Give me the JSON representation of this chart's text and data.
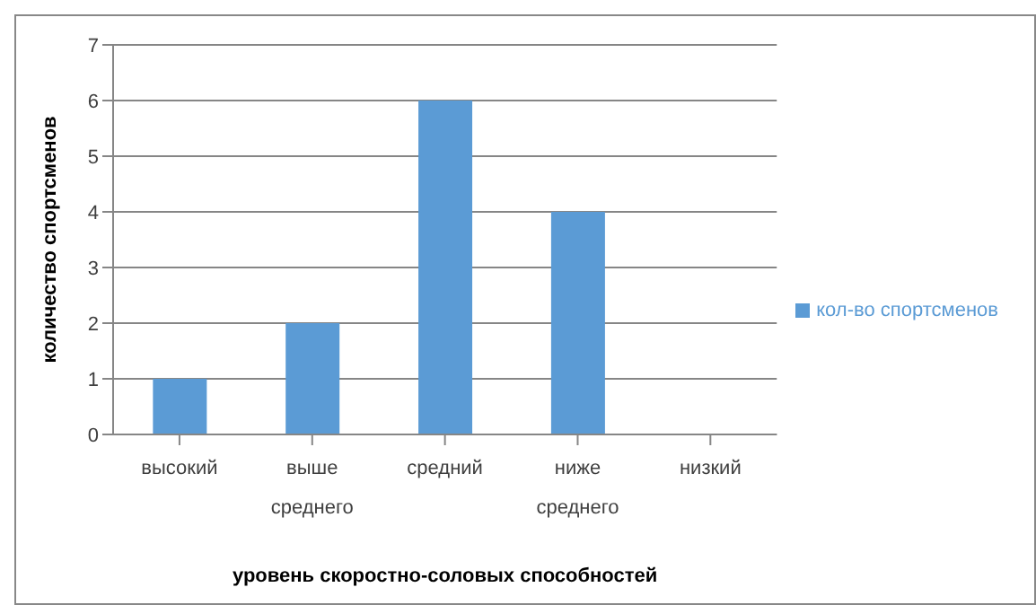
{
  "chart_data": {
    "type": "bar",
    "xlabel": "уровень скоростно-соловых  способностей",
    "ylabel": "количество  спортсменов",
    "categories": [
      "высокий",
      "выше среднего",
      "средний",
      "ниже среднего",
      "низкий"
    ],
    "series": [
      {
        "name": "кол-во спортсменов",
        "color": "#5b9bd5",
        "values": [
          1,
          2,
          6,
          4,
          0
        ]
      }
    ],
    "ylim": [
      0,
      7
    ],
    "yticks": [
      0,
      1,
      2,
      3,
      4,
      5,
      6,
      7
    ],
    "grid": "y",
    "legend": "right"
  }
}
